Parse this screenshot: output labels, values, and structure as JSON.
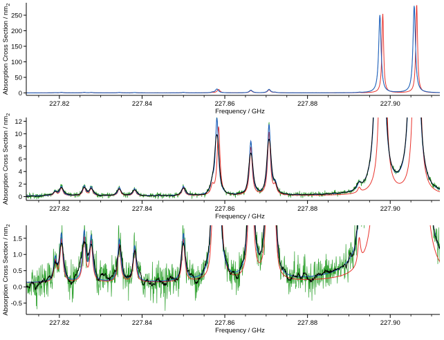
{
  "chart_data": [
    {
      "type": "line",
      "panel": "full-range",
      "xlabel": "Frequency / GHz",
      "ylabel": "Absorption Cross Section / nm",
      "ylabel_sub": "2",
      "xlim": [
        227.812,
        227.912
      ],
      "ylim": [
        -8,
        290
      ],
      "x_ticks": [
        227.82,
        227.84,
        227.86,
        227.88,
        227.9
      ],
      "y_ticks": [
        0,
        50,
        100,
        150,
        200,
        250
      ],
      "tick_labels_x": [
        "227.82",
        "227.84",
        "227.86",
        "227.88",
        "227.90"
      ],
      "tick_labels_y": [
        "0",
        "50",
        "100",
        "150",
        "200",
        "250"
      ],
      "grid": false,
      "series": [
        {
          "color": "#e8312a",
          "role": "model",
          "peaks": [
            [
              227.8982,
              258,
              0.00025
            ],
            [
              227.9064,
              283,
              0.00025
            ]
          ]
        },
        {
          "color": "#2ca02c",
          "role": "observed",
          "noise": 0.3
        },
        {
          "color": "#1f5fbf",
          "role": "fit",
          "peaks": [
            [
              227.8975,
              252,
              0.0003
            ],
            [
              227.9058,
              280,
              0.0003
            ],
            [
              227.8581,
              12,
              0.0005
            ],
            [
              227.8663,
              8.5,
              0.0005
            ],
            [
              227.8707,
              11,
              0.0005
            ]
          ]
        }
      ]
    },
    {
      "type": "line",
      "panel": "mid-zoom",
      "xlabel": "Frequency / GHz",
      "ylabel": "Absorption Cross Section / nm",
      "ylabel_sub": "2",
      "xlim": [
        227.812,
        227.912
      ],
      "ylim": [
        -0.6,
        12.6
      ],
      "x_ticks": [
        227.82,
        227.84,
        227.86,
        227.88,
        227.9
      ],
      "y_ticks": [
        0,
        2,
        4,
        6,
        8,
        10,
        12
      ],
      "tick_labels_x": [
        "227.82",
        "227.84",
        "227.86",
        "227.88",
        "227.90"
      ],
      "tick_labels_y": [
        "0",
        "2",
        "4",
        "6",
        "8",
        "10",
        "12"
      ],
      "grid": false,
      "series": [
        {
          "color": "#2ca02c",
          "role": "observed",
          "noise": 0.22
        },
        {
          "color": "#e8312a",
          "role": "model"
        },
        {
          "color": "#1f5fbf",
          "role": "fit"
        },
        {
          "color": "#000000",
          "role": "smoothed"
        }
      ]
    },
    {
      "type": "line",
      "panel": "close-zoom",
      "xlabel": "Frequency / GHz",
      "ylabel": "Absorption Cross Section / nm",
      "ylabel_sub": "2",
      "xlim": [
        227.812,
        227.912
      ],
      "ylim": [
        -0.85,
        1.9
      ],
      "x_ticks": [
        227.82,
        227.84,
        227.86,
        227.88,
        227.9
      ],
      "y_ticks": [
        -0.5,
        0.0,
        0.5,
        1.0,
        1.5
      ],
      "tick_labels_x": [
        "227.82",
        "227.84",
        "227.86",
        "227.88",
        "227.90"
      ],
      "tick_labels_y": [
        "-0.5",
        "0.0",
        "0.5",
        "1.0",
        "1.5"
      ],
      "grid": false,
      "series": [
        {
          "color": "#2ca02c",
          "role": "observed",
          "noise": 0.28
        },
        {
          "color": "#e8312a",
          "role": "model"
        },
        {
          "color": "#1f5fbf",
          "role": "fit"
        },
        {
          "color": "#000000",
          "role": "smoothed"
        }
      ]
    }
  ],
  "lines_ghz": [
    [
      227.819,
      0.7
    ],
    [
      227.8205,
      1.45
    ],
    [
      227.826,
      1.5
    ],
    [
      227.8277,
      1.35
    ],
    [
      227.8345,
      1.3
    ],
    [
      227.8382,
      1.1
    ],
    [
      227.85,
      1.45
    ],
    [
      227.857,
      1.5
    ],
    [
      227.8581,
      12.1
    ],
    [
      227.8663,
      8.5
    ],
    [
      227.8707,
      11.1
    ],
    [
      227.8722,
      1.5
    ],
    [
      227.8925,
      0.9
    ],
    [
      227.8975,
      250
    ],
    [
      227.9058,
      280
    ]
  ],
  "model_offsets_ghz": {
    "227.8975": 0.0007,
    "227.9058": 0.0006,
    "227.8581": 0.0004
  },
  "baseline": 0.12
}
